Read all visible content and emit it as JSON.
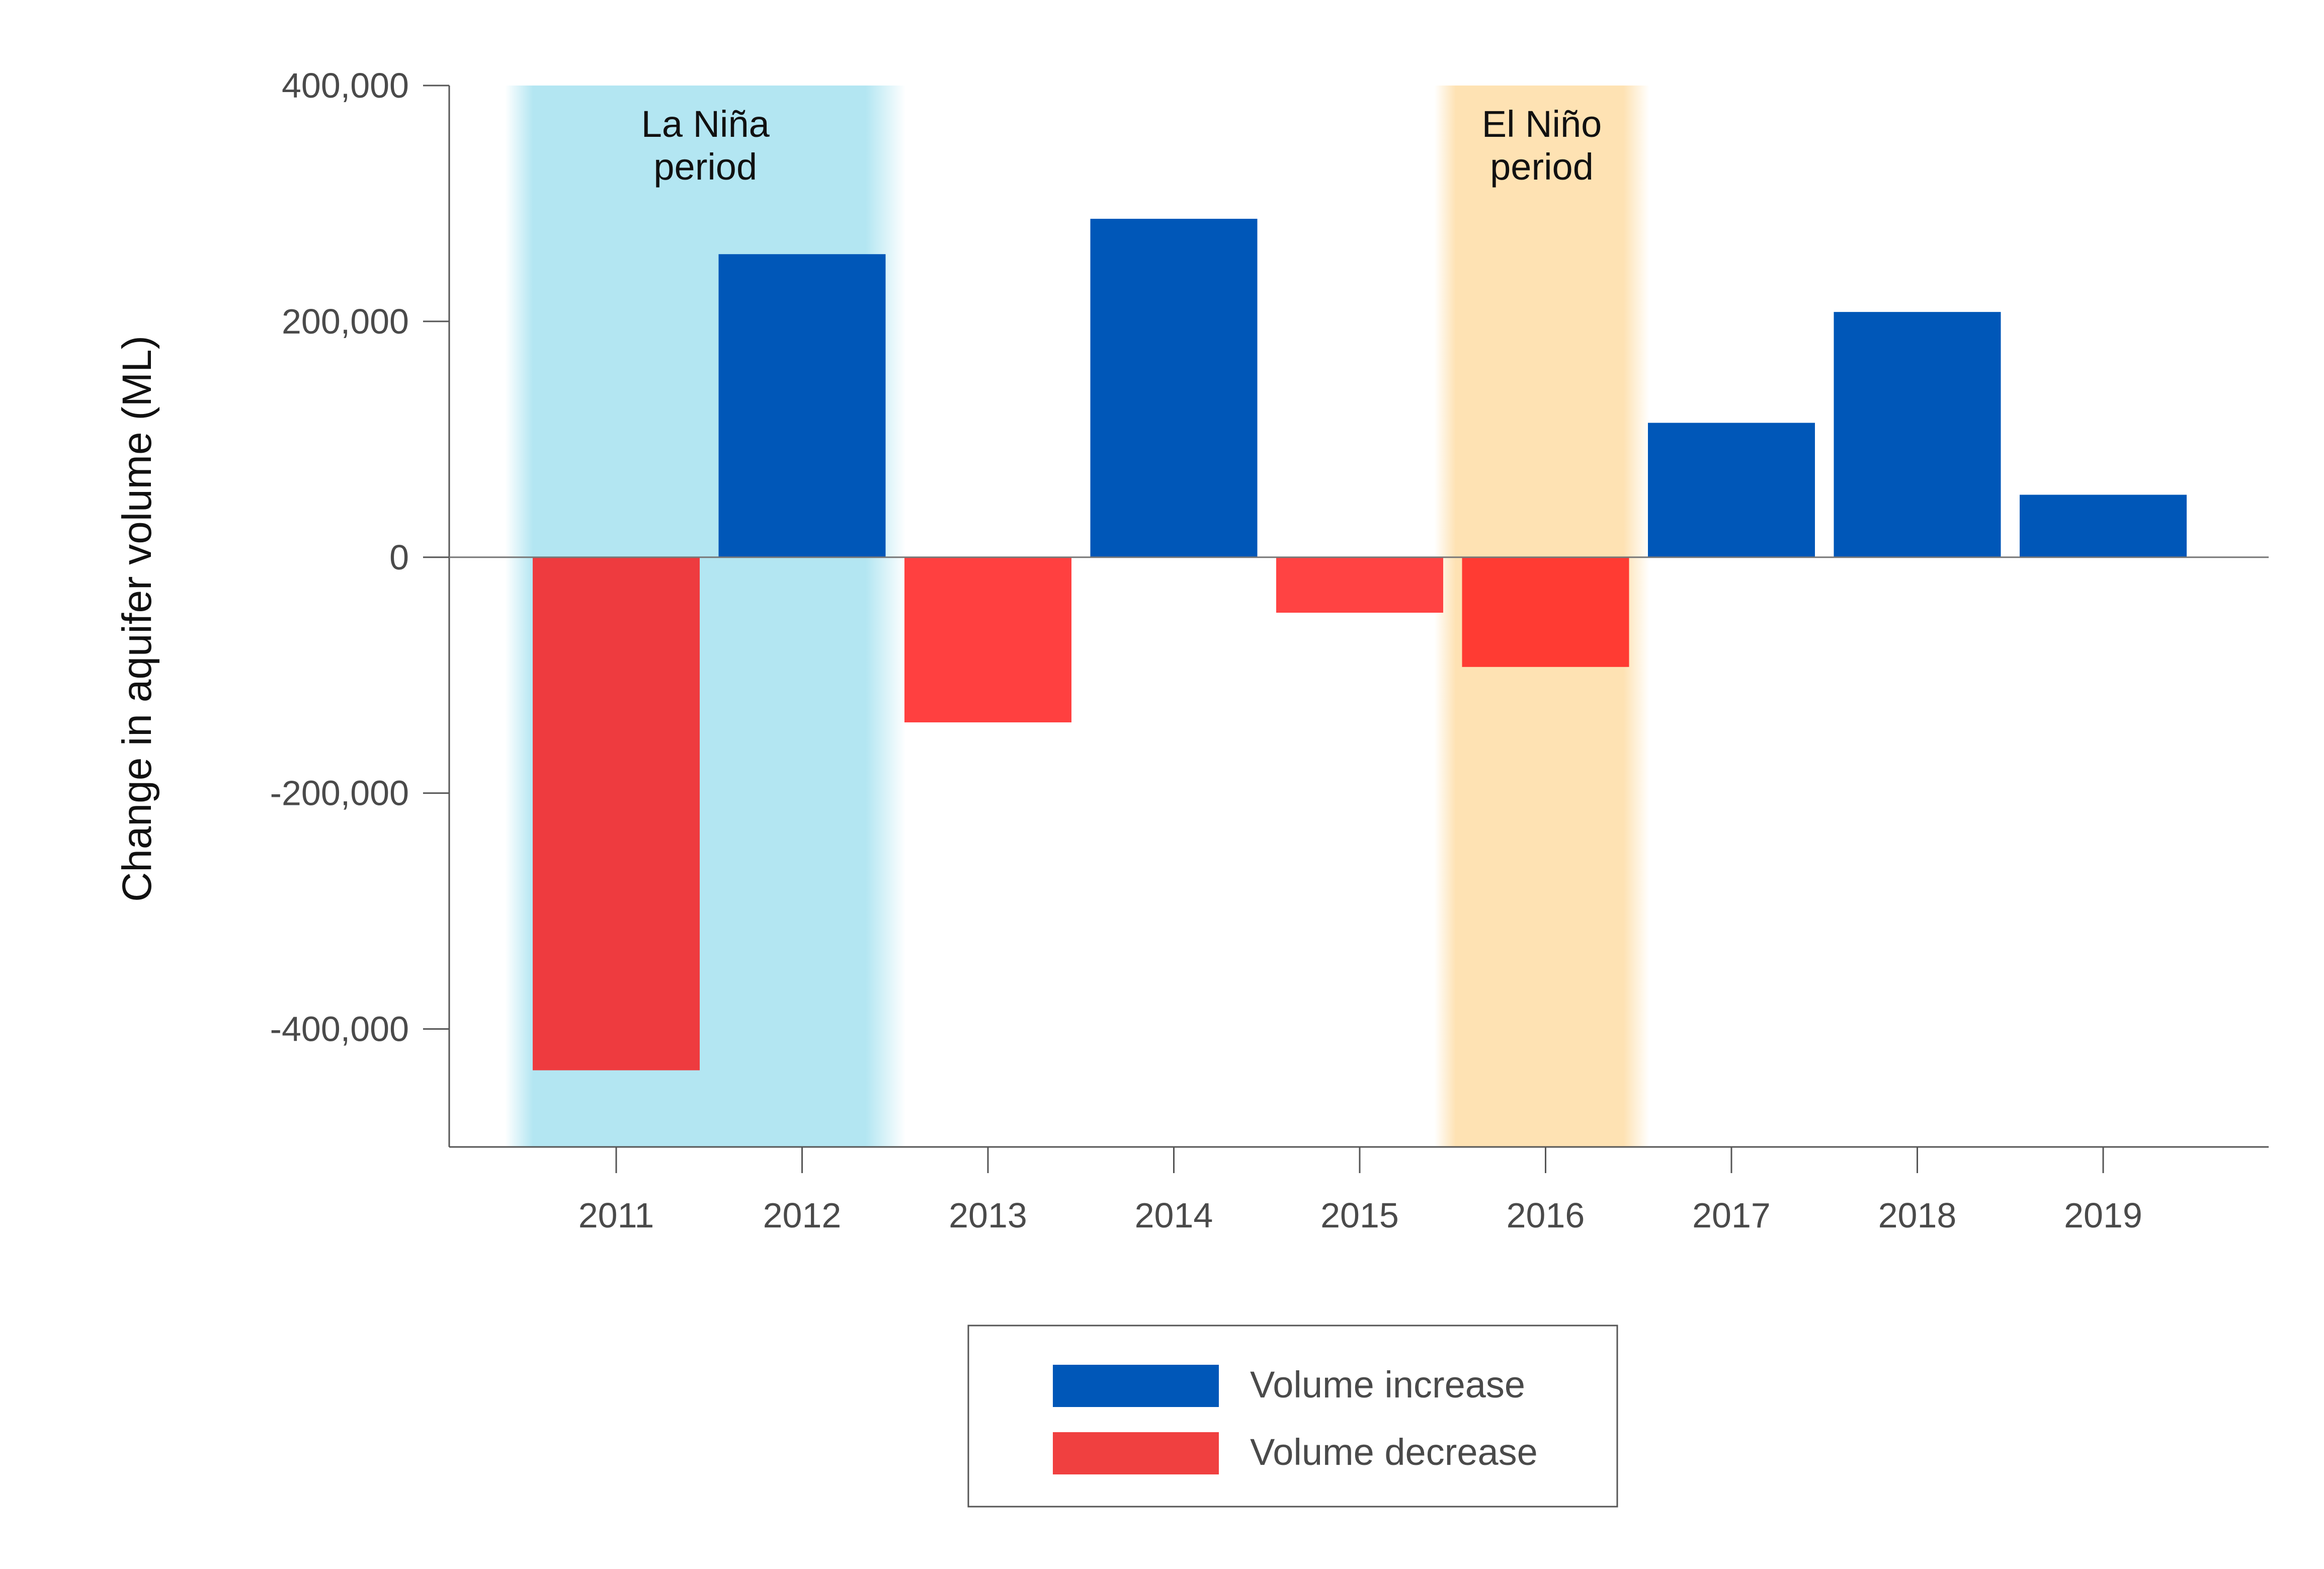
{
  "chart_data": {
    "type": "bar",
    "ylabel": "Change in aquifer volume (ML)",
    "xlabel": "",
    "categories": [
      "2011",
      "2012",
      "2013",
      "2014",
      "2015",
      "2016",
      "2017",
      "2018",
      "2019"
    ],
    "values": [
      -435000,
      257000,
      -140000,
      287000,
      -47000,
      -93000,
      114000,
      208000,
      53000
    ],
    "ylim": [
      -500000,
      400000
    ],
    "yticks": [
      400000,
      200000,
      0,
      -200000,
      -400000
    ],
    "ytick_labels": [
      "400,000",
      "200,000",
      "0",
      "-200,000",
      "-400,000"
    ],
    "grid": false,
    "legend_position": "bottom",
    "legend": [
      {
        "label": "Volume increase",
        "color": "#0057b8"
      },
      {
        "label": "Volume decrease",
        "color": "#f04040"
      }
    ],
    "bar_colors": [
      "#ee3b3f",
      "#0057b8",
      "#ff4040",
      "#0057b8",
      "#ff4343",
      "#ff3b33",
      "#0057b8",
      "#0057b8",
      "#0057b8"
    ],
    "shaded_periods": [
      {
        "label_lines": [
          "La Niña",
          "period"
        ],
        "from": "2011",
        "to": "2012",
        "color": "#b3e6f2"
      },
      {
        "label_lines": [
          "El Niño",
          "period"
        ],
        "from": "2016",
        "to": "2016",
        "color": "#fee2b3"
      }
    ]
  }
}
